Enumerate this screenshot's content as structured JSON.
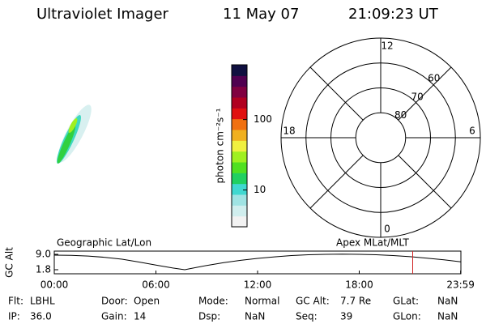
{
  "header": {
    "instrument": "Ultraviolet Imager",
    "date": "11 May 07",
    "time": "21:09:23 UT"
  },
  "colorbar": {
    "label": "photon cm⁻²s⁻¹",
    "log": true,
    "clim": [
      3,
      600
    ],
    "ticks": [
      10,
      100
    ],
    "colors": [
      "#f2f2f2",
      "#d0eeee",
      "#9fe3e3",
      "#40d8d0",
      "#20d060",
      "#50e020",
      "#a0f020",
      "#f0f040",
      "#f0b020",
      "#f07010",
      "#e01010",
      "#b00020",
      "#800040",
      "#500050",
      "#101040"
    ]
  },
  "polar": {
    "rlim": [
      90,
      50
    ],
    "rings": [
      60,
      70,
      80
    ],
    "mlt_ticks": [
      0,
      6,
      12,
      18
    ]
  },
  "altitude": {
    "ylabel": "GC Alt",
    "left_label": "Geographic Lat/Lon",
    "right_label": "Apex MLat/MLT",
    "ylim": [
      -0.1,
      10.5
    ],
    "yticks": [
      {
        "value": 9,
        "label": "9.0"
      },
      {
        "value": 1.8,
        "label": "1.8"
      }
    ],
    "xlim": [
      0,
      24
    ],
    "xticks": [
      {
        "value": 0,
        "label": "00:00"
      },
      {
        "value": 6,
        "label": "06:00"
      },
      {
        "value": 12,
        "label": "12:00"
      },
      {
        "value": 18,
        "label": "18:00"
      },
      {
        "value": 23.983,
        "label": "23:59"
      }
    ],
    "hours": [
      0,
      1,
      2,
      3,
      4,
      5,
      6,
      7,
      7.7,
      8,
      9,
      10,
      11,
      12,
      13,
      14,
      15,
      16,
      17,
      18,
      19,
      20,
      21,
      22,
      23,
      24
    ],
    "values": [
      8.6,
      8.5,
      8.2,
      7.6,
      6.7,
      5.4,
      4.0,
      2.6,
      1.8,
      2.3,
      3.8,
      5.1,
      6.2,
      7.1,
      7.8,
      8.4,
      8.8,
      9.0,
      9.1,
      9.0,
      8.8,
      8.4,
      7.9,
      7.2,
      6.4,
      5.5
    ],
    "current_time": 21.156,
    "current_color": "#d02020"
  },
  "info": {
    "rows": [
      [
        [
          "Flt:",
          "LBHL"
        ],
        [
          "Door:",
          "Open"
        ],
        [
          "Mode:",
          "Normal"
        ],
        [
          "GC Alt:",
          "7.7 Re"
        ],
        [
          "GLat:",
          "NaN"
        ]
      ],
      [
        [
          "IP:",
          "36.0"
        ],
        [
          "Gain:",
          "14"
        ],
        [
          "Dsp:",
          "NaN"
        ],
        [
          "Seq:",
          "39"
        ],
        [
          "GLon:",
          "NaN"
        ]
      ]
    ]
  }
}
